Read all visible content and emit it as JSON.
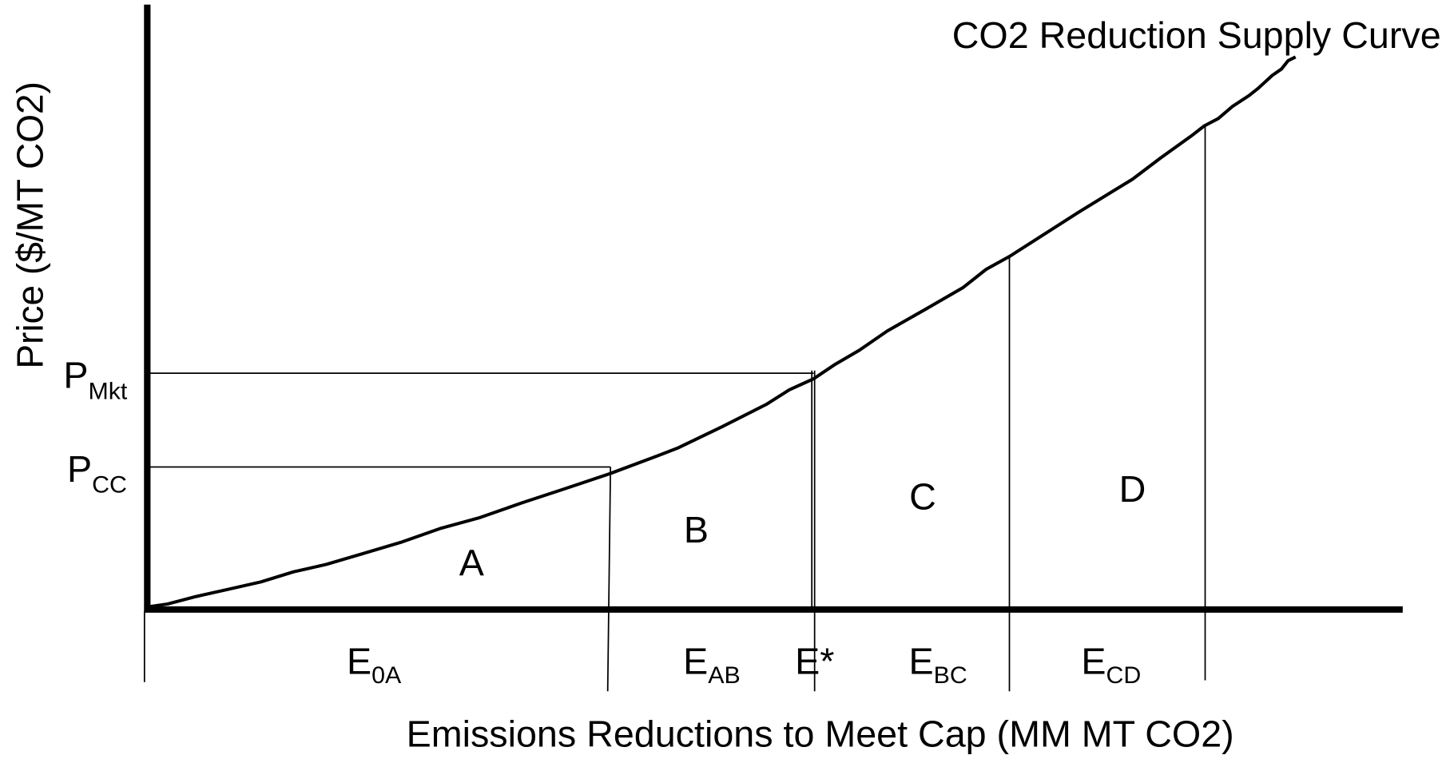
{
  "title": "CO2 Reduction Supply Curve",
  "y_axis_label": "Price ($/MT CO2)",
  "x_axis_label": "Emissions Reductions to Meet Cap (MM MT CO2)",
  "price_labels": [
    {
      "base": "P",
      "sub": "Mkt"
    },
    {
      "base": "P",
      "sub": "CC"
    }
  ],
  "regions": [
    "A",
    "B",
    "C",
    "D"
  ],
  "emission_labels": [
    {
      "base": "E",
      "sub": "0A"
    },
    {
      "base": "E",
      "sub": "AB"
    },
    {
      "base": "E*",
      "sub": ""
    },
    {
      "base": "E",
      "sub": "BC"
    },
    {
      "base": "E",
      "sub": "CD"
    }
  ]
}
